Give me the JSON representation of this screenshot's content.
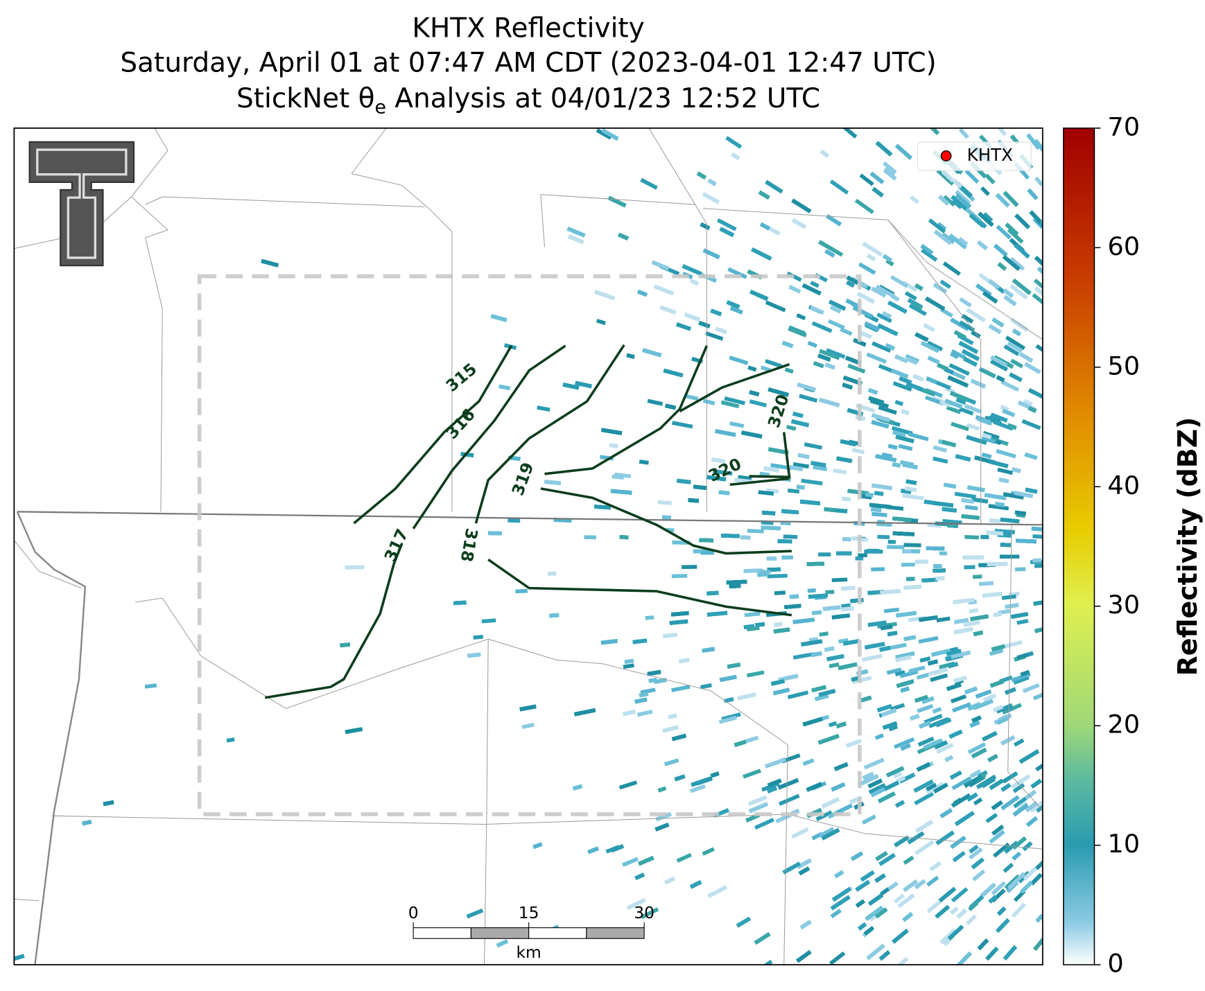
{
  "title": {
    "line1": "KHTX Reflectivity",
    "line2": "Saturday, April 01 at 07:47 AM CDT (2023-04-01 12:47 UTC)",
    "line3": {
      "pre": "StickNet θ",
      "sub": "e",
      "post": " Analysis at 04/01/23 12:52 UTC"
    }
  },
  "legend": {
    "label": "KHTX",
    "color": "#ff0000"
  },
  "colorbar": {
    "label": "Reflectivity (dBZ)",
    "lim": [
      0,
      70
    ],
    "ticks": [
      0,
      10,
      20,
      30,
      40,
      50,
      60,
      70
    ]
  },
  "contours": [
    "315",
    "316",
    "317",
    "318",
    "319",
    "320",
    "320"
  ],
  "scale_bar": {
    "lim": [
      0,
      30
    ],
    "ticks": [
      0,
      15,
      30
    ],
    "unit": "km"
  }
}
